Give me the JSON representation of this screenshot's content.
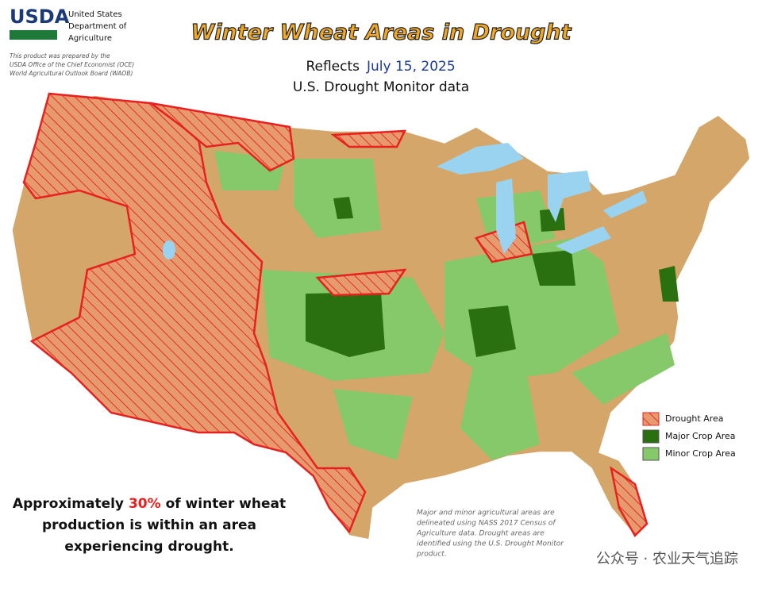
{
  "header": {
    "logo": "USDA",
    "agency": [
      "United States",
      "Department of",
      "Agriculture"
    ],
    "credit": [
      "This product was prepared by the",
      "USDA Office of the Chief Economist (OCE)",
      "World Agricultural Outlook Board (WAOB)"
    ]
  },
  "title": "Winter Wheat Areas in Drought",
  "subtitle": {
    "prefix": "Reflects",
    "date": "July 15, 2025",
    "source": "U.S. Drought Monitor data"
  },
  "legend": [
    "Drought Area",
    "Major Crop Area",
    "Minor Crop Area"
  ],
  "summary": {
    "before": "Approximately",
    "share": "30%",
    "after": [
      "of winter wheat",
      "production is within an area",
      "experiencing drought."
    ]
  },
  "note": [
    "Major and minor agricultural areas are",
    "delineated using NASS 2017 Census of",
    "Agriculture data.  Drought areas are",
    "identified using the U.S. Drought Monitor",
    "product."
  ],
  "watermark": "公众号 · 农业天气追踪"
}
